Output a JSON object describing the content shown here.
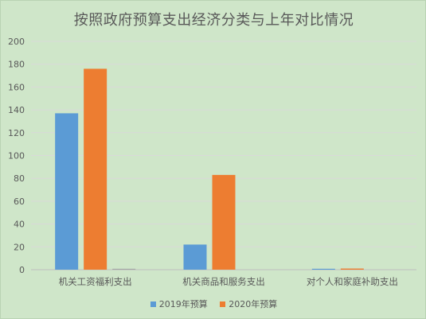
{
  "chart_data": {
    "type": "bar",
    "title": "按照政府预算支出经济分类与上年对比情况",
    "categories": [
      "机关工资福利支出",
      "机关商品和服务支出",
      "对个人和家庭补助支出"
    ],
    "series": [
      {
        "name": "2019年预算",
        "values": [
          137,
          22,
          0.8
        ]
      },
      {
        "name": "2020年预算",
        "values": [
          176,
          83,
          1
        ]
      },
      {
        "name": "",
        "values": [
          0.8,
          0,
          0
        ]
      }
    ],
    "yticks": [
      0,
      20,
      40,
      60,
      80,
      100,
      120,
      140,
      160,
      180,
      200
    ],
    "ylim": [
      0,
      200
    ],
    "grid": true,
    "legend": "bottom",
    "colors": [
      "#5b9bd5",
      "#ed7d31",
      "#a5a5a5"
    ]
  }
}
